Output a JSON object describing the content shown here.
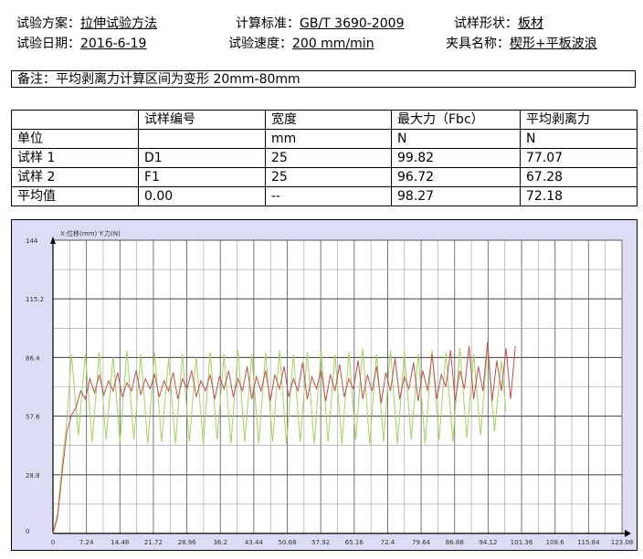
{
  "header": {
    "scheme_label": "试验方案：",
    "scheme_value": "拉伸试验方法",
    "standard_label": "计算标准：",
    "standard_value": "GB/T 3690-2009",
    "shape_label": "试样形状：",
    "shape_value": "板材",
    "date_label": "试验日期：",
    "date_value": "2016-6-19",
    "speed_label": "试验速度：",
    "speed_value": "200 mm/min",
    "fixture_label": "夹具名称：",
    "fixture_value": "楔形+平板波浪"
  },
  "remark": "备注：平均剥离力计算区间为变形 20mm-80mm",
  "table": {
    "headers": [
      "",
      "试样编号",
      "宽度",
      "最大力（Fbc）",
      "平均剥离力"
    ],
    "rows": [
      [
        "单位",
        "",
        "mm",
        "N",
        "N"
      ],
      [
        "试样 1",
        "D1",
        "25",
        "99.82",
        "77.07"
      ],
      [
        "试样 2",
        "F1",
        "25",
        "96.72",
        "67.28"
      ],
      [
        "平均值",
        "0.00",
        "--",
        "98.27",
        "72.18"
      ]
    ]
  },
  "chart_data": {
    "type": "line",
    "title": "",
    "axis_caption": "X:位移(mm)  Y:力(N)",
    "xlabel": "位移(mm)",
    "ylabel": "力(N)",
    "xlim": [
      0,
      123.08
    ],
    "ylim": [
      0,
      144
    ],
    "x_ticks": [
      "0",
      "7.24",
      "14.48",
      "21.72",
      "28.96",
      "36.2",
      "43.44",
      "50.68",
      "57.92",
      "65.16",
      "72.4",
      "79.64",
      "86.88",
      "94.12",
      "101.36",
      "108.6",
      "115.84",
      "123.08"
    ],
    "y_ticks": [
      "0",
      "28.8",
      "57.6",
      "86.4",
      "115.2",
      "144"
    ],
    "grid": true,
    "series": [
      {
        "color": "#a8d060",
        "points": [
          [
            0,
            0
          ],
          [
            1,
            10
          ],
          [
            2,
            35
          ],
          [
            3,
            55
          ],
          [
            4,
            88
          ],
          [
            5.5,
            48
          ],
          [
            7,
            88
          ],
          [
            8.5,
            45
          ],
          [
            10,
            89
          ],
          [
            11.5,
            46
          ],
          [
            13,
            87
          ],
          [
            14.5,
            45
          ],
          [
            16,
            90
          ],
          [
            17.5,
            46
          ],
          [
            19,
            88
          ],
          [
            20.5,
            44
          ],
          [
            22,
            89
          ],
          [
            23.5,
            45
          ],
          [
            25,
            86
          ],
          [
            26.5,
            44
          ],
          [
            28,
            88
          ],
          [
            29.5,
            45
          ],
          [
            31,
            87
          ],
          [
            32.5,
            44
          ],
          [
            34,
            89
          ],
          [
            35.5,
            46
          ],
          [
            37,
            88
          ],
          [
            38.5,
            44
          ],
          [
            40,
            90
          ],
          [
            41.5,
            45
          ],
          [
            43,
            88
          ],
          [
            44.5,
            44
          ],
          [
            46,
            89
          ],
          [
            47.5,
            45
          ],
          [
            49,
            90
          ],
          [
            50.5,
            44
          ],
          [
            52,
            88
          ],
          [
            53.5,
            45
          ],
          [
            55,
            89
          ],
          [
            56.5,
            44
          ],
          [
            58,
            90
          ],
          [
            59.5,
            45
          ],
          [
            61,
            88
          ],
          [
            62.5,
            44
          ],
          [
            64,
            89
          ],
          [
            65.5,
            46
          ],
          [
            67,
            91
          ],
          [
            68.5,
            44
          ],
          [
            70,
            88
          ],
          [
            71.5,
            45
          ],
          [
            73,
            90
          ],
          [
            74.5,
            44
          ],
          [
            76,
            89
          ],
          [
            77.5,
            46
          ],
          [
            79,
            88
          ],
          [
            80.5,
            44
          ],
          [
            82,
            90
          ],
          [
            83.5,
            46
          ],
          [
            85,
            89
          ],
          [
            86.5,
            45
          ],
          [
            88,
            91
          ],
          [
            89.5,
            47
          ],
          [
            91,
            88
          ],
          [
            92.5,
            48
          ],
          [
            94,
            92
          ],
          [
            95.5,
            50
          ],
          [
            97,
            85
          ],
          [
            98,
            60
          ]
        ]
      },
      {
        "color": "#c05050",
        "points": [
          [
            0,
            0
          ],
          [
            1,
            8
          ],
          [
            2,
            30
          ],
          [
            3,
            50
          ],
          [
            4,
            58
          ],
          [
            5,
            62
          ],
          [
            6,
            70
          ],
          [
            7,
            66
          ],
          [
            8,
            76
          ],
          [
            9,
            69
          ],
          [
            10,
            78
          ],
          [
            11,
            68
          ],
          [
            12,
            75
          ],
          [
            13,
            70
          ],
          [
            14,
            79
          ],
          [
            15,
            67
          ],
          [
            16,
            74
          ],
          [
            17,
            70
          ],
          [
            18,
            80
          ],
          [
            19,
            68
          ],
          [
            20,
            76
          ],
          [
            21,
            71
          ],
          [
            22,
            78
          ],
          [
            23,
            67
          ],
          [
            24,
            75
          ],
          [
            25,
            70
          ],
          [
            26,
            79
          ],
          [
            27,
            66
          ],
          [
            28,
            76
          ],
          [
            29,
            71
          ],
          [
            30,
            80
          ],
          [
            31,
            67
          ],
          [
            32,
            75
          ],
          [
            33,
            70
          ],
          [
            34,
            78
          ],
          [
            35,
            66
          ],
          [
            36,
            77
          ],
          [
            37,
            71
          ],
          [
            38,
            80
          ],
          [
            39,
            67
          ],
          [
            40,
            76
          ],
          [
            41,
            70
          ],
          [
            42,
            82
          ],
          [
            43,
            66
          ],
          [
            44,
            77
          ],
          [
            45,
            70
          ],
          [
            46,
            80
          ],
          [
            47,
            65
          ],
          [
            48,
            78
          ],
          [
            49,
            71
          ],
          [
            50,
            82
          ],
          [
            51,
            67
          ],
          [
            52,
            76
          ],
          [
            53,
            70
          ],
          [
            54,
            84
          ],
          [
            55,
            66
          ],
          [
            56,
            77
          ],
          [
            57,
            71
          ],
          [
            58,
            80
          ],
          [
            59,
            65
          ],
          [
            60,
            78
          ],
          [
            61,
            70
          ],
          [
            62,
            83
          ],
          [
            63,
            67
          ],
          [
            64,
            76
          ],
          [
            65,
            71
          ],
          [
            66,
            85
          ],
          [
            67,
            66
          ],
          [
            68,
            78
          ],
          [
            69,
            70
          ],
          [
            70,
            82
          ],
          [
            71,
            64
          ],
          [
            72,
            79
          ],
          [
            73,
            70
          ],
          [
            74,
            86
          ],
          [
            75,
            66
          ],
          [
            76,
            77
          ],
          [
            77,
            71
          ],
          [
            78,
            84
          ],
          [
            79,
            65
          ],
          [
            80,
            80
          ],
          [
            81,
            70
          ],
          [
            82,
            88
          ],
          [
            83,
            66
          ],
          [
            84,
            78
          ],
          [
            85,
            72
          ],
          [
            86,
            90
          ],
          [
            87,
            65
          ],
          [
            88,
            80
          ],
          [
            89,
            71
          ],
          [
            90,
            92
          ],
          [
            91,
            66
          ],
          [
            92,
            82
          ],
          [
            93,
            70
          ],
          [
            94,
            94
          ],
          [
            95,
            65
          ],
          [
            96,
            85
          ],
          [
            97,
            70
          ],
          [
            98,
            91
          ],
          [
            99,
            66
          ],
          [
            100,
            92
          ]
        ]
      }
    ]
  }
}
